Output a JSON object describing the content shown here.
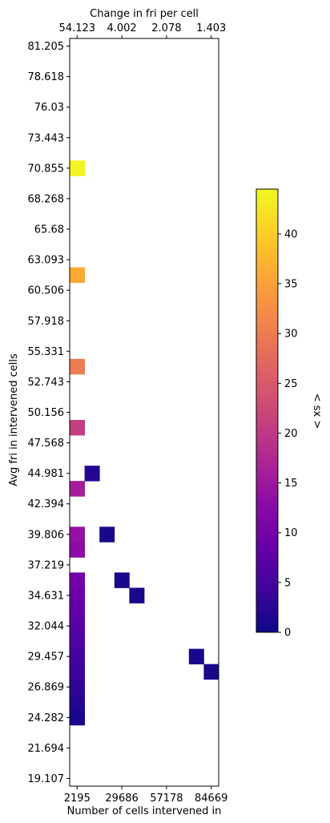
{
  "chart_data": {
    "type": "heatmap",
    "xlabel": "Number of cells intervened in",
    "x_ticks": [
      "2195",
      "29686",
      "57178",
      "84669"
    ],
    "x_top_label": "Change in fri per cell",
    "x_top_ticks": [
      "54.123",
      "4.002",
      "2.078",
      "1.403"
    ],
    "ylabel": "Avg fri in intervened cells",
    "y_ticks": [
      "81.205",
      "78.618",
      "76.03",
      "73.443",
      "70.855",
      "68.268",
      "65.68",
      "63.093",
      "60.506",
      "57.918",
      "55.331",
      "52.743",
      "50.156",
      "47.568",
      "44.981",
      "42.394",
      "39.806",
      "37.219",
      "34.631",
      "32.044",
      "29.457",
      "26.869",
      "24.282",
      "21.694",
      "19.107"
    ],
    "colorbar_label": "< sx >",
    "colorbar_ticks": [
      "0",
      "5",
      "10",
      "15",
      "20",
      "25",
      "30",
      "35",
      "40"
    ],
    "colorbar_range": [
      0,
      44.5
    ],
    "colormap": "plasma",
    "n_columns": 10,
    "n_rows": 49,
    "cells": [
      {
        "col": 0,
        "row": 8,
        "value": 44
      },
      {
        "col": 0,
        "row": 15,
        "value": 36
      },
      {
        "col": 0,
        "row": 21,
        "value": 30
      },
      {
        "col": 0,
        "row": 25,
        "value": 21
      },
      {
        "col": 0,
        "row": 29,
        "value": 16
      },
      {
        "col": 0,
        "row": 32,
        "value": 14
      },
      {
        "col": 0,
        "row": 33,
        "value": 13
      },
      {
        "col": 0,
        "row": 35,
        "value": 10
      },
      {
        "col": 0,
        "row": 36,
        "value": 9
      },
      {
        "col": 0,
        "row": 37,
        "value": 8
      },
      {
        "col": 0,
        "row": 38,
        "value": 7
      },
      {
        "col": 0,
        "row": 39,
        "value": 6
      },
      {
        "col": 0,
        "row": 40,
        "value": 5
      },
      {
        "col": 0,
        "row": 41,
        "value": 4
      },
      {
        "col": 0,
        "row": 42,
        "value": 3
      },
      {
        "col": 0,
        "row": 43,
        "value": 2
      },
      {
        "col": 0,
        "row": 44,
        "value": 1
      },
      {
        "col": 1,
        "row": 28,
        "value": 2
      },
      {
        "col": 2,
        "row": 32,
        "value": 1
      },
      {
        "col": 3,
        "row": 35,
        "value": 1
      },
      {
        "col": 4,
        "row": 36,
        "value": 1
      },
      {
        "col": 8,
        "row": 40,
        "value": 1
      },
      {
        "col": 9,
        "row": 41,
        "value": 1
      }
    ]
  }
}
